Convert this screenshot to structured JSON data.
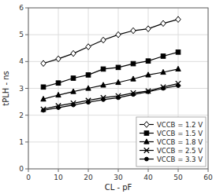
{
  "chart_data": {
    "type": "line",
    "title": "",
    "xlabel": "CL - pF",
    "ylabel": "tPLH - ns",
    "x": [
      5,
      10,
      15,
      20,
      25,
      30,
      35,
      40,
      45,
      50
    ],
    "xlim": [
      0,
      60
    ],
    "ylim": [
      0,
      6
    ],
    "xticks": [
      0,
      10,
      20,
      30,
      40,
      50,
      60
    ],
    "yticks": [
      0,
      1,
      2,
      3,
      4,
      5,
      6
    ],
    "grid": true,
    "legend": "lower right",
    "series": [
      {
        "name": "VCCB = 1.2 V",
        "color": "black",
        "marker": "diamond",
        "values": [
          3.93,
          4.1,
          4.3,
          4.55,
          4.8,
          5.0,
          5.15,
          5.22,
          5.42,
          5.57
        ]
      },
      {
        "name": "VCCB = 1.5 V",
        "color": "black",
        "marker": "square",
        "values": [
          3.05,
          3.2,
          3.38,
          3.5,
          3.72,
          3.78,
          3.92,
          4.02,
          4.2,
          4.35
        ]
      },
      {
        "name": "VCCB = 1.8 V",
        "color": "black",
        "marker": "triangle",
        "values": [
          2.6,
          2.75,
          2.88,
          3.0,
          3.12,
          3.22,
          3.35,
          3.5,
          3.6,
          3.72
        ]
      },
      {
        "name": "VCCB = 2.5 V",
        "color": "black",
        "marker": "x",
        "values": [
          2.22,
          2.35,
          2.45,
          2.55,
          2.65,
          2.72,
          2.83,
          2.9,
          3.05,
          3.18
        ]
      },
      {
        "name": "VCCB = 3.3 V",
        "color": "black",
        "marker": "circle",
        "values": [
          2.18,
          2.28,
          2.38,
          2.48,
          2.58,
          2.65,
          2.77,
          2.87,
          3.0,
          3.1
        ]
      }
    ]
  }
}
